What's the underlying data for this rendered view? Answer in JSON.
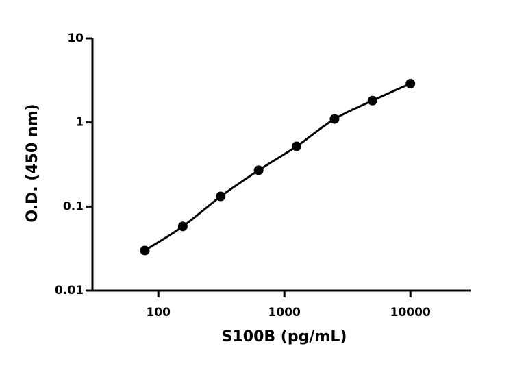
{
  "chart_data": {
    "type": "line",
    "x_label": "S100B (pg/mL)",
    "y_label": "O.D. (450 nm)",
    "x": [
      78.125,
      156.25,
      312.5,
      625,
      1250,
      2500,
      5000,
      10000
    ],
    "series": [
      {
        "color": "#000000",
        "values": [
          0.03,
          0.058,
          0.132,
          0.27,
          0.52,
          1.1,
          1.82,
          2.9
        ]
      }
    ],
    "xlim": [
      30,
      30000
    ],
    "xticks": [
      100,
      1000,
      10000
    ],
    "xlog": true,
    "ylim": [
      0.01,
      10
    ],
    "yticks": [
      0.01,
      0.1,
      1,
      10
    ],
    "ylog": true,
    "grid": false
  }
}
